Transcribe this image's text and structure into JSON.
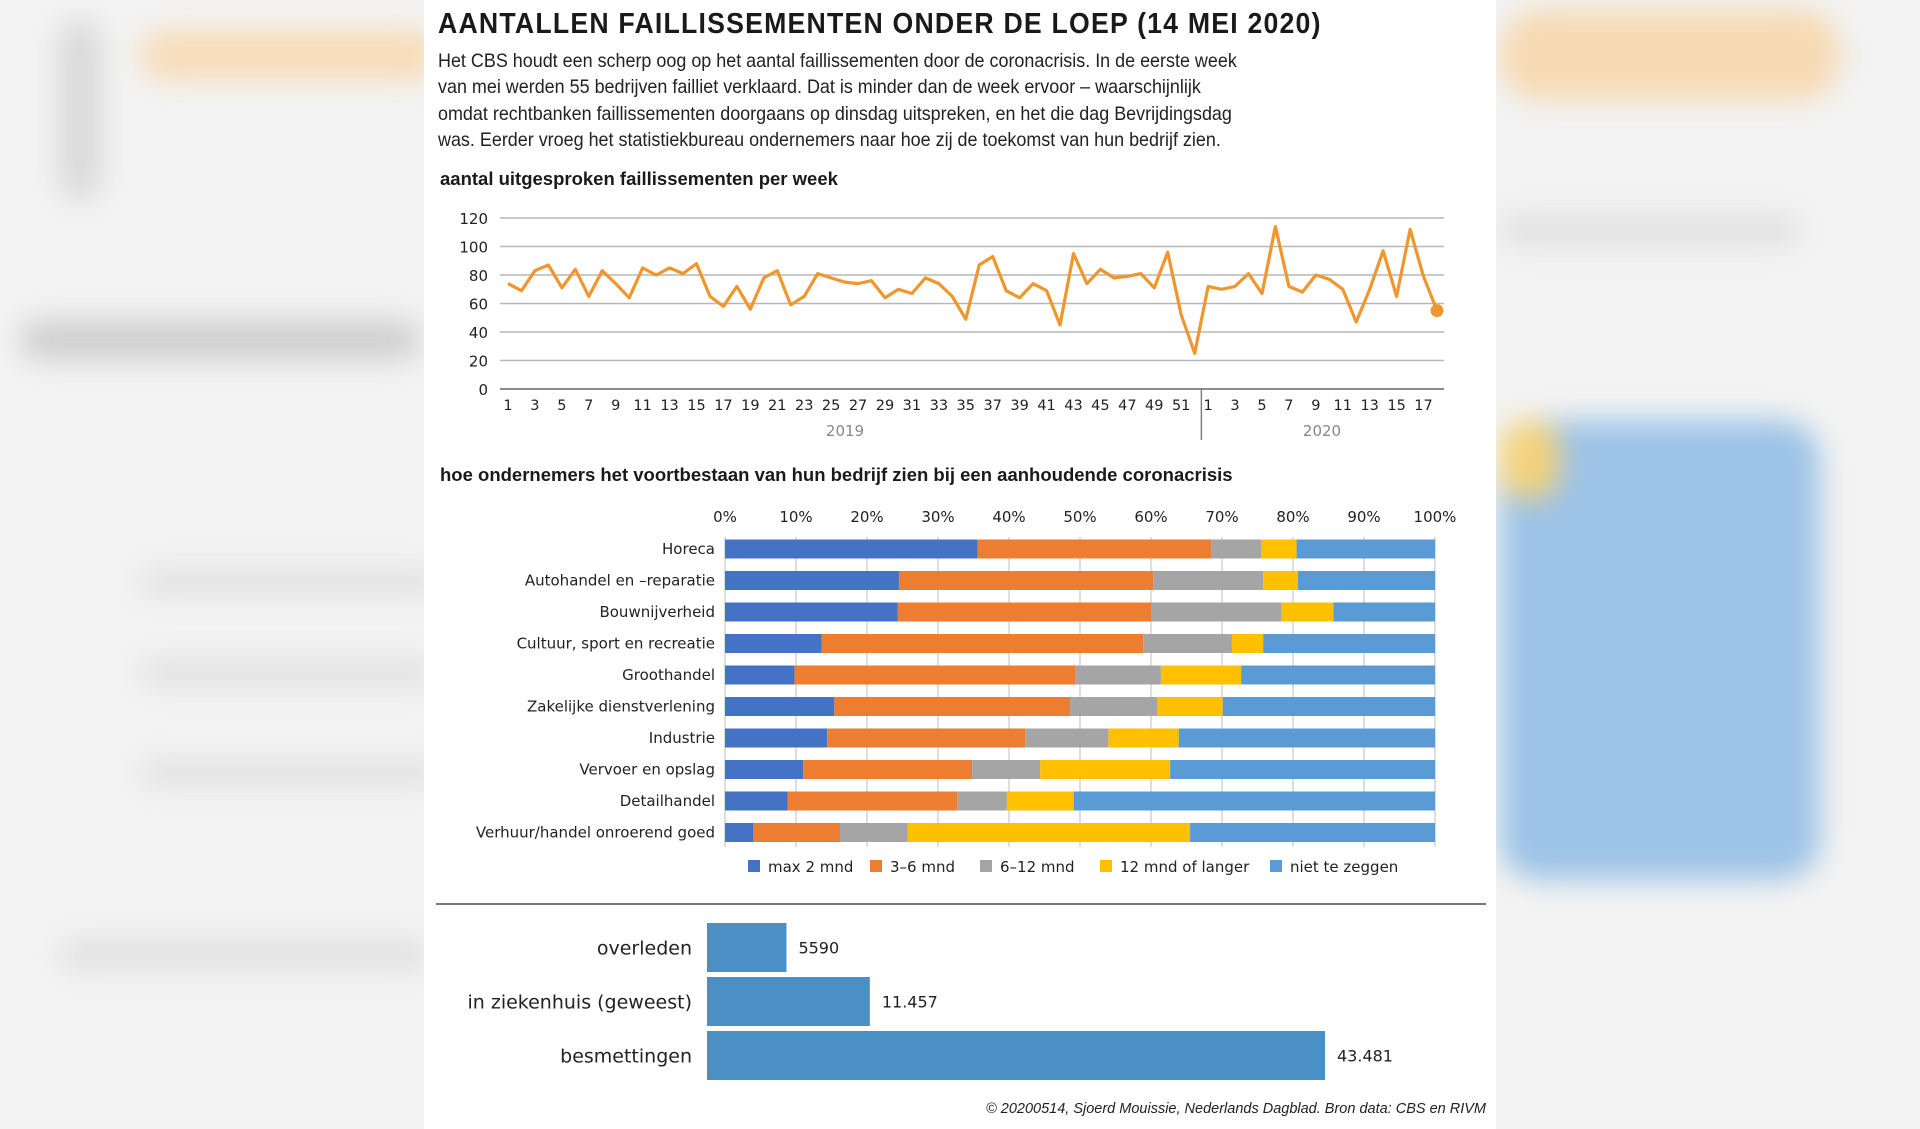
{
  "header": {
    "title": "AANTALLEN FAILLISSEMENTEN ONDER DE LOEP (14 MEI 2020)",
    "intro_lines": [
      "Het CBS houdt een scherp oog op het aantal faillissementen door de coronacrisis. In de eerste week",
      "van mei werden 55 bedrijven failliet verklaard. Dat is minder dan de week ervoor – waarschijnlijk",
      "omdat rechtbanken faillissementen doorgaans op dinsdag uitspreken, en het die dag Bevrijdingsdag",
      "was. Eerder vroeg het statistiekbureau ondernemers naar hoe zij de toekomst van hun bedrijf zien."
    ]
  },
  "colors": {
    "line": "#F0962E",
    "max2": "#4472C4",
    "m36": "#ED7D31",
    "m612": "#A5A5A5",
    "m12plus": "#FFC000",
    "niet": "#5B9BD5",
    "bottom_bar": "#4A90C4",
    "grid": "#b7b7b7"
  },
  "chart_data": [
    {
      "type": "line",
      "title": "aantal uitgesproken faillissementen per week",
      "xlabel": "",
      "ylabel": "",
      "ylim": [
        0,
        120
      ],
      "yticks": [
        0,
        20,
        40,
        60,
        80,
        100,
        120
      ],
      "grid": true,
      "groups": [
        {
          "year": "2019",
          "weeks": [
            1,
            2,
            3,
            4,
            5,
            6,
            7,
            8,
            9,
            10,
            11,
            12,
            13,
            14,
            15,
            16,
            17,
            18,
            19,
            20,
            21,
            22,
            23,
            24,
            25,
            26,
            27,
            28,
            29,
            30,
            31,
            32,
            33,
            34,
            35,
            36,
            37,
            38,
            39,
            40,
            41,
            42,
            43,
            44,
            45,
            46,
            47,
            48,
            49,
            50,
            51,
            52
          ],
          "values": [
            74,
            69,
            83,
            87,
            71,
            84,
            65,
            83,
            74,
            64,
            85,
            80,
            85,
            81,
            88,
            65,
            58,
            72,
            56,
            78,
            83,
            59,
            65,
            81,
            78,
            75,
            74,
            76,
            64,
            70,
            67,
            78,
            74,
            65,
            49,
            87,
            93,
            69,
            64,
            74,
            69,
            45,
            95,
            74,
            84,
            78,
            79,
            81,
            71,
            96,
            52,
            25
          ]
        },
        {
          "year": "2020",
          "weeks": [
            1,
            2,
            3,
            4,
            5,
            6,
            7,
            8,
            9,
            10,
            11,
            12,
            13,
            14,
            15,
            16,
            17,
            18
          ],
          "values": [
            72,
            70,
            72,
            81,
            67,
            114,
            72,
            68,
            80,
            77,
            70,
            47,
            70,
            97,
            65,
            112,
            79,
            55
          ]
        }
      ],
      "tick_labels_2019": [
        "1",
        "3",
        "5",
        "7",
        "9",
        "11",
        "13",
        "15",
        "17",
        "19",
        "21",
        "23",
        "25",
        "27",
        "29",
        "31",
        "33",
        "35",
        "37",
        "39",
        "41",
        "43",
        "45",
        "47",
        "49",
        "51"
      ],
      "tick_labels_2020": [
        "1",
        "3",
        "5",
        "7",
        "9",
        "11",
        "13",
        "15",
        "17"
      ],
      "highlight_last_point": true
    },
    {
      "type": "bar",
      "orientation": "horizontal-stacked-100",
      "title": "hoe ondernemers het voortbestaan van hun bedrijf zien bij een aanhoudende coronacrisis",
      "xlim": [
        0,
        100
      ],
      "xticks": [
        "0%",
        "10%",
        "20%",
        "30%",
        "40%",
        "50%",
        "60%",
        "70%",
        "80%",
        "90%",
        "100%"
      ],
      "grid": true,
      "legend_position": "bottom",
      "categories": [
        "Horeca",
        "Autohandel en –reparatie",
        "Bouwnijverheid",
        "Cultuur, sport en recreatie",
        "Groothandel",
        "Zakelijke dienstverlening",
        "Industrie",
        "Vervoer en opslag",
        "Detailhandel",
        "Verhuur/handel onroerend goed"
      ],
      "series": [
        {
          "name": "max 2 mnd",
          "color_key": "max2",
          "values": [
            35.6,
            24.5,
            24.3,
            13.6,
            9.8,
            15.4,
            14.4,
            11.0,
            8.8,
            4.0
          ]
        },
        {
          "name": "3–6 mnd",
          "color_key": "m36",
          "values": [
            32.9,
            35.8,
            35.7,
            45.3,
            39.5,
            33.2,
            27.9,
            23.8,
            23.9,
            12.2
          ]
        },
        {
          "name": "6–12 mnd",
          "color_key": "m612",
          "values": [
            7.0,
            15.5,
            18.4,
            12.5,
            12.1,
            12.3,
            11.7,
            9.6,
            7.0,
            9.5
          ]
        },
        {
          "name": "12 mnd of langer",
          "color_key": "m12plus",
          "values": [
            5.0,
            4.9,
            7.3,
            4.4,
            11.3,
            9.2,
            9.9,
            18.3,
            9.4,
            39.8
          ]
        },
        {
          "name": "niet te zeggen",
          "color_key": "niet",
          "values": [
            19.5,
            19.3,
            14.3,
            24.2,
            27.3,
            29.9,
            36.1,
            37.3,
            50.9,
            34.5
          ]
        }
      ]
    },
    {
      "type": "bar",
      "orientation": "horizontal",
      "title": "",
      "categories": [
        "overleden",
        "in ziekenhuis (geweest)",
        "besmettingen"
      ],
      "values": [
        5590,
        11457,
        43481
      ],
      "value_labels": [
        "5590",
        "11.457",
        "43.481"
      ]
    }
  ],
  "footer": {
    "credit": "© 20200514, Sjoerd Mouissie, Nederlands Dagblad. Bron data: CBS en RIVM"
  }
}
